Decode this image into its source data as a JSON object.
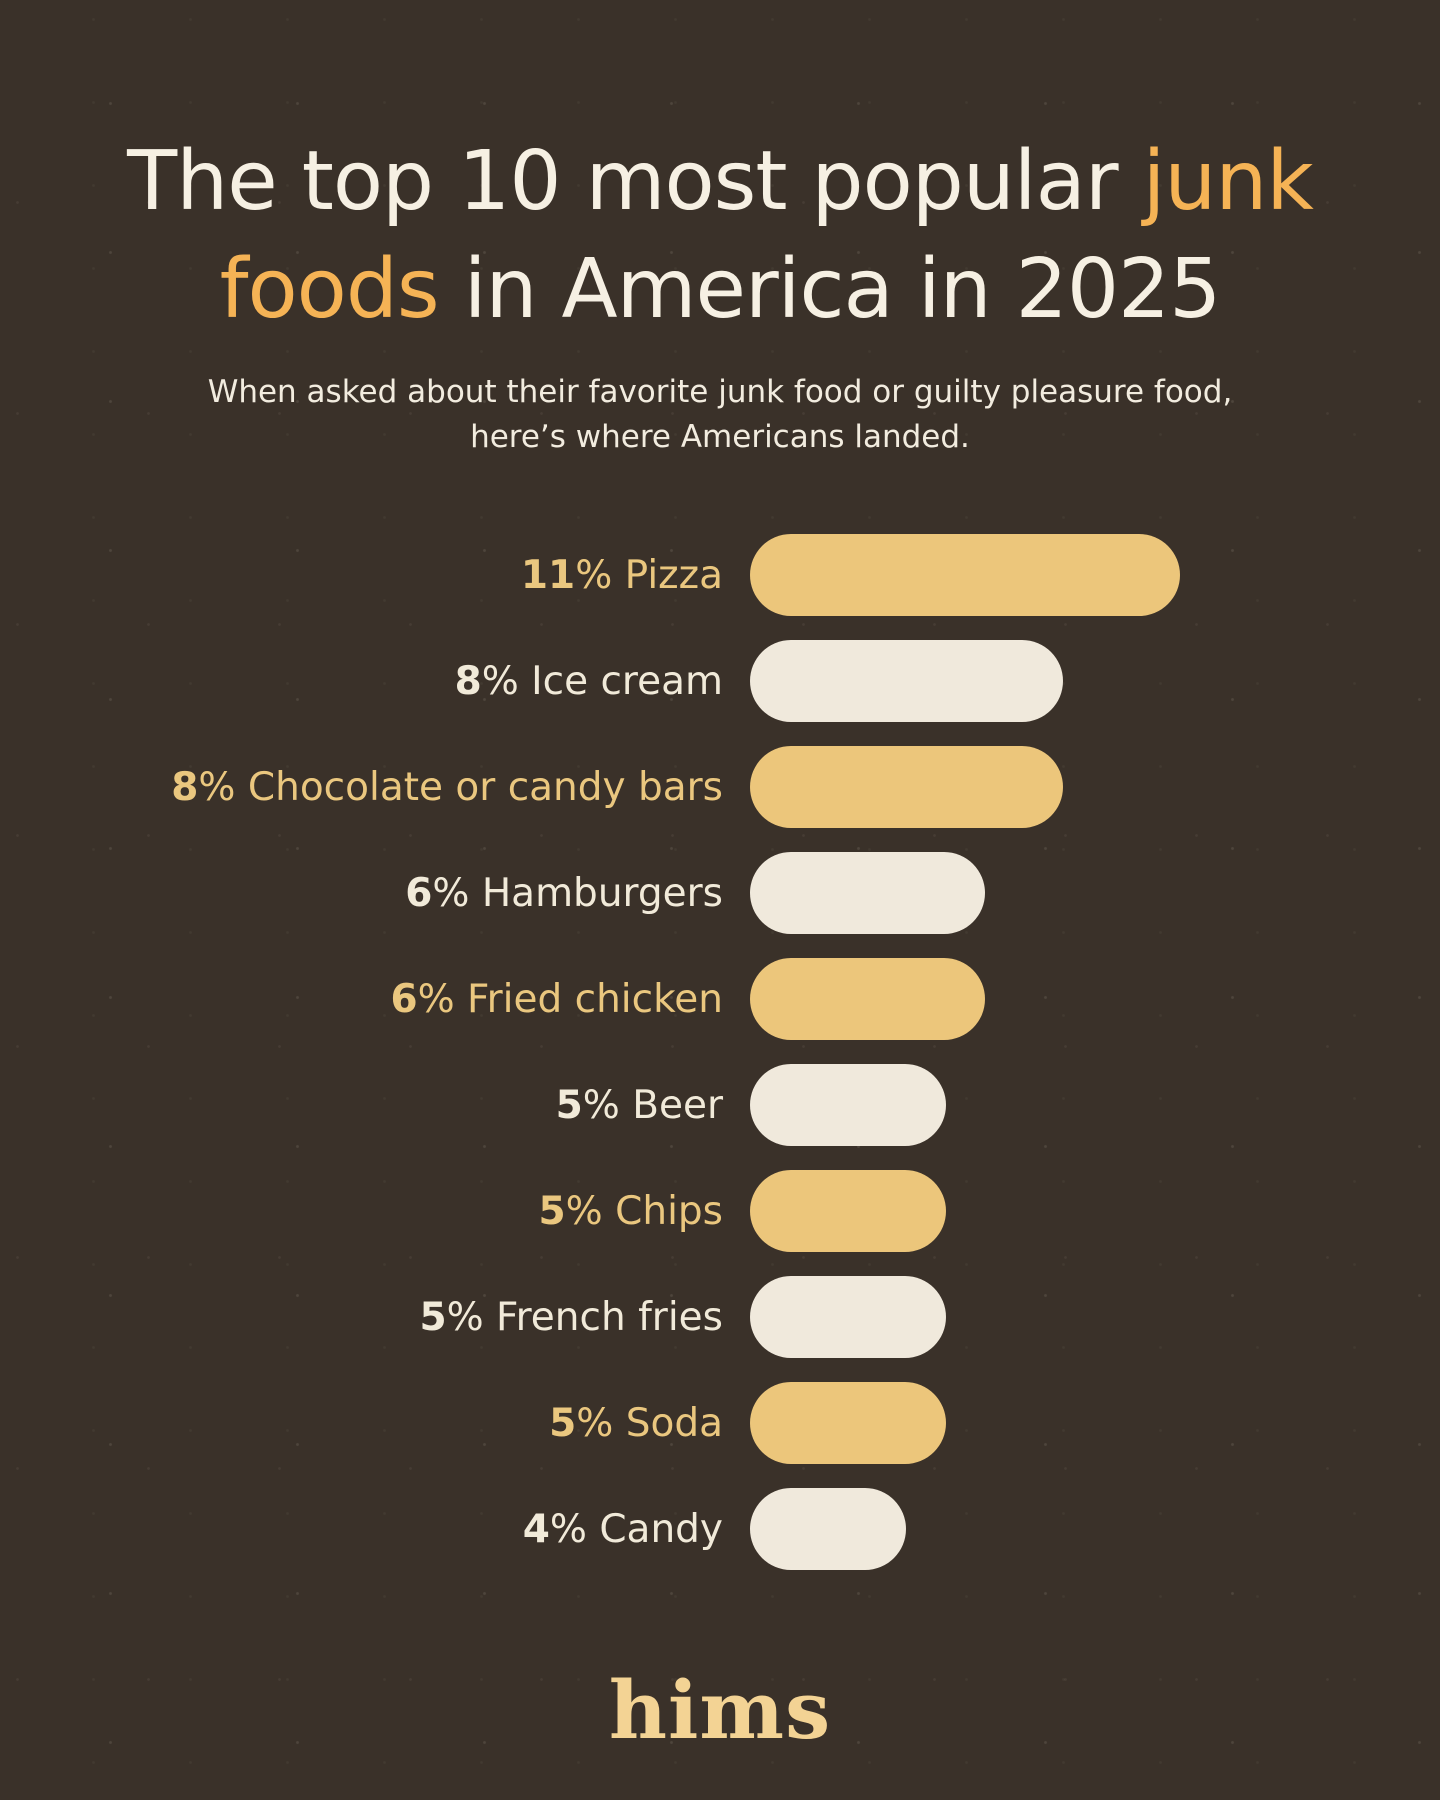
{
  "title": {
    "line1_text": "The top 10 most popular",
    "line1_accent": "junk",
    "line2_accent": "foods",
    "line2_text": "in America in 2025"
  },
  "subtitle": {
    "line1": "When asked about their favorite junk food or guilty pleasure food,",
    "line2": "here’s where Americans landed."
  },
  "chart_data": {
    "type": "bar",
    "orientation": "horizontal",
    "unit": "%",
    "categories": [
      "Pizza",
      "Ice cream",
      "Chocolate or candy bars",
      "Hamburgers",
      "Fried chicken",
      "Beer",
      "Chips",
      "French fries",
      "Soda",
      "Candy"
    ],
    "values": [
      11,
      8,
      8,
      6,
      6,
      5,
      5,
      5,
      5,
      4
    ],
    "bar_color_sequence": [
      "gold",
      "cream",
      "gold",
      "cream",
      "gold",
      "cream",
      "gold",
      "cream",
      "gold",
      "cream"
    ],
    "value_label_format": "{value}% {category}",
    "labels_position": "left-of-bar",
    "grid": false,
    "legend": false
  },
  "colors": {
    "background": "#3a3129",
    "title_text": "#f6f0e3",
    "title_accent": "#f5b355",
    "subtitle_text": "#f2ecdf",
    "bar_gold": "#ecc67b",
    "bar_cream": "#f0e9dc",
    "label_gold": "#eac77f",
    "label_cream": "#f1ead9",
    "logo_gold": "#f3d394"
  },
  "footer": {
    "brand": "hims"
  }
}
